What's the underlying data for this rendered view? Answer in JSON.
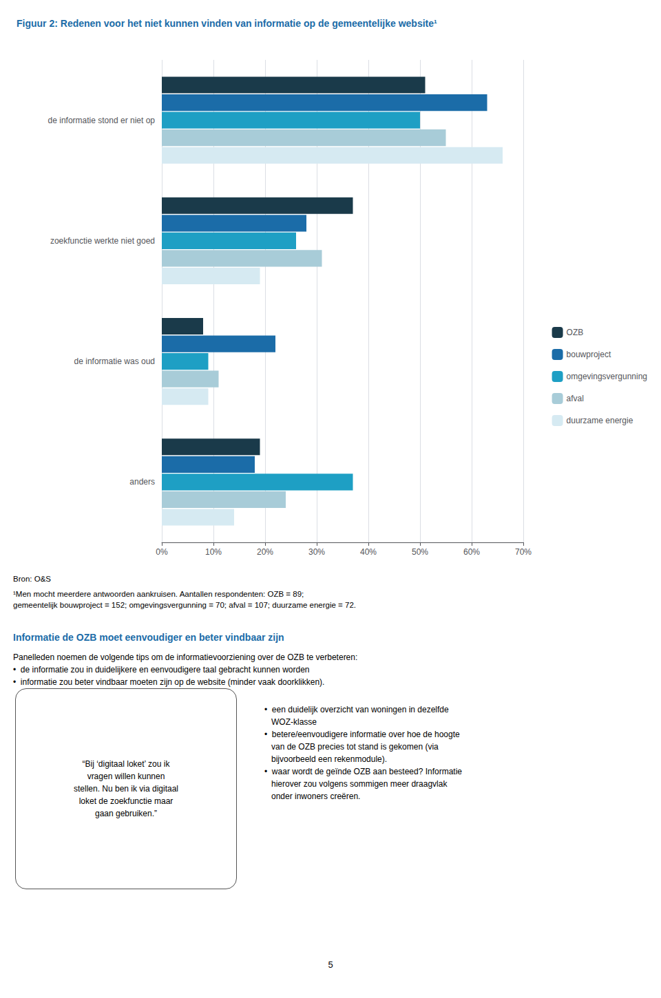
{
  "chart_data": {
    "type": "bar",
    "orientation": "horizontal",
    "title": "Figuur 2: Redenen voor het niet kunnen vinden van informatie op de gemeentelijke website¹",
    "categories": [
      "de informatie stond er niet op",
      "zoekfunctie werkte niet goed",
      "de informatie was oud",
      "anders"
    ],
    "series": [
      {
        "name": "OZB",
        "color": "#1a3a4a",
        "values": [
          0.51,
          0.37,
          0.08,
          0.19
        ]
      },
      {
        "name": "bouwproject",
        "color": "#1b6ca8",
        "values": [
          0.63,
          0.28,
          0.22,
          0.18
        ]
      },
      {
        "name": "omgevingsvergunning",
        "color": "#1e9fc4",
        "values": [
          0.5,
          0.26,
          0.09,
          0.37
        ]
      },
      {
        "name": "afval",
        "color": "#a8ccd8",
        "values": [
          0.55,
          0.31,
          0.11,
          0.24
        ]
      },
      {
        "name": "duurzame energie",
        "color": "#d6eaf2",
        "values": [
          0.66,
          0.19,
          0.09,
          0.14
        ]
      }
    ],
    "xlim": [
      0,
      0.7
    ],
    "xticks": [
      {
        "value": 0.0,
        "label": "0%"
      },
      {
        "value": 0.1,
        "label": "10%"
      },
      {
        "value": 0.2,
        "label": "20%"
      },
      {
        "value": 0.3,
        "label": "30%"
      },
      {
        "value": 0.4,
        "label": "40%"
      },
      {
        "value": 0.5,
        "label": "50%"
      },
      {
        "value": 0.6,
        "label": "60%"
      },
      {
        "value": 0.7,
        "label": "70%"
      }
    ],
    "grid": true,
    "legend": "right",
    "annotations": [
      "Bron: O&S",
      "¹Men mocht meerdere antwoorden aankruisen. Aantallen respondenten: OZB = 89;\ngemeentelijk bouwproject = 152; omgevingsvergunning = 70; afval = 107; duurzame energie = 72.",
      "Informatie de OZB moet eenvoudiger en beter vindbaar zijn",
      "Panelleden noemen de volgende tips om de informatievoorziening over de OZB te verbeteren:\n•  de informatie zou in duidelijkere en eenvoudigere taal gebracht kunnen worden\n•  informatie zou beter vindbaar moeten zijn op de website (minder vaak doorklikken).",
      "“Bij ‘digitaal loket’ zou ik\nvragen willen kunnen\nstellen. Nu ben ik via digitaal\nloket de zoekfunctie maar\ngaan gebruiken.”",
      "•  een duidelijk overzicht van woningen in dezelfde\n   WOZ-klasse\n•  betere/eenvoudigere informatie over hoe de hoogte\n   van de OZB precies tot stand is gekomen (via\n   bijvoorbeeld een rekenmodule).\n•  waar wordt de geïnde OZB aan besteed? Informatie\n   hierover zou volgens sommigen meer draagvlak\n   onder inwoners creëren.",
      "5"
    ]
  }
}
